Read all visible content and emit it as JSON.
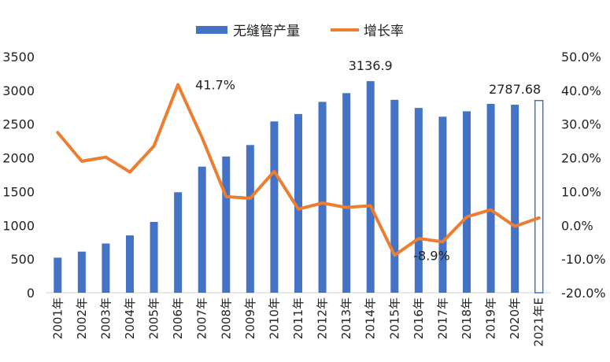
{
  "chart_data": {
    "type": "bar",
    "categories": [
      "2001年",
      "2002年",
      "2003年",
      "2004年",
      "2005年",
      "2006年",
      "2007年",
      "2008年",
      "2009年",
      "2010年",
      "2011年",
      "2012年",
      "2013年",
      "2014年",
      "2015年",
      "2016年",
      "2017年",
      "2018年",
      "2019年",
      "2020年",
      "2021年E"
    ],
    "series": [
      {
        "name": "无缝管产量",
        "type": "bar",
        "axis": "left",
        "color": "#4472C4",
        "values": [
          520,
          610,
          730,
          850,
          1050,
          1490,
          1870,
          2020,
          2190,
          2540,
          2650,
          2830,
          2960,
          3136.9,
          2860,
          2740,
          2610,
          2690,
          2800,
          2787.68,
          2850
        ],
        "estimated_last": true
      },
      {
        "name": "增长率",
        "type": "line",
        "axis": "right",
        "color": "#ED7D31",
        "values": [
          27.5,
          19.0,
          20.2,
          15.8,
          23.5,
          41.7,
          26.0,
          8.5,
          8.0,
          16.0,
          4.8,
          6.6,
          5.3,
          5.8,
          -8.9,
          -3.9,
          -4.9,
          2.5,
          4.6,
          -0.3,
          2.2
        ]
      }
    ],
    "y_left": {
      "ylim": [
        0,
        3500
      ],
      "ticks": [
        "0",
        "500",
        "1000",
        "1500",
        "2000",
        "2500",
        "3000",
        "3500"
      ]
    },
    "y_right": {
      "ylim": [
        -20,
        50
      ],
      "ticks": [
        "-20.0%",
        "-10.0%",
        "0.0%",
        "10.0%",
        "20.0%",
        "30.0%",
        "40.0%",
        "50.0%"
      ]
    },
    "annotations": [
      {
        "text": "41.7%",
        "series": 1,
        "index": 5
      },
      {
        "text": "3136.9",
        "series": 0,
        "index": 13
      },
      {
        "text": "-8.9%",
        "series": 1,
        "index": 14
      },
      {
        "text": "2787.68",
        "series": 0,
        "index": 19
      }
    ],
    "legend_position": "top",
    "grid": false
  }
}
